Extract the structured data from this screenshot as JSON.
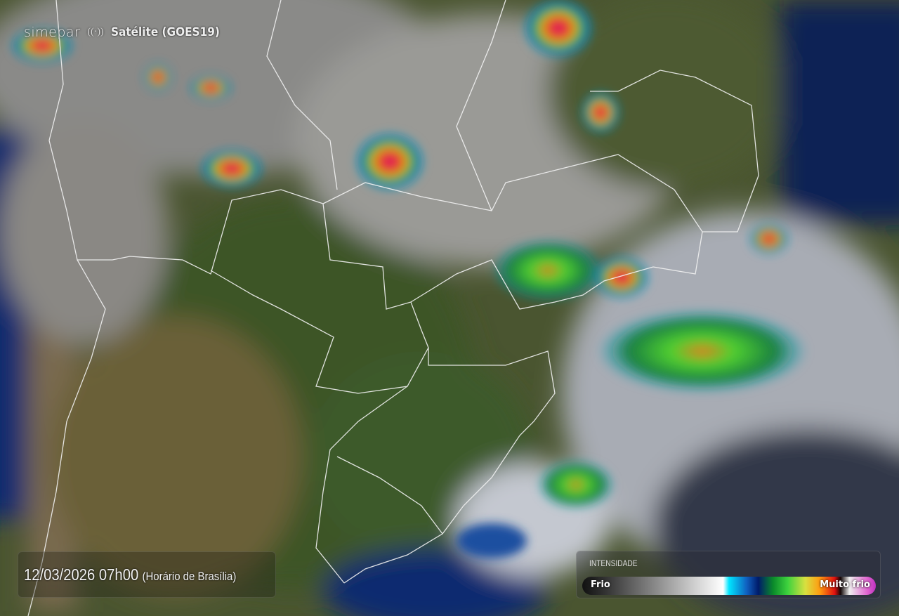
{
  "header": {
    "logo": "simepar",
    "title": "Satélite (GOES19)",
    "logo_icon": "signal-waves-icon"
  },
  "timestamp": {
    "datetime": "12/03/2026 07h00",
    "timezone": "(Horário de Brasília)"
  },
  "legend": {
    "title": "INTENSIDADE",
    "min_label": "Frio",
    "max_label": "Muito frio",
    "colors": [
      "#111111",
      "#8a8a8a",
      "#ffffff",
      "#00e5ff",
      "#1060c0",
      "#001b6a",
      "#3ed23e",
      "#d8e040",
      "#ff9a10",
      "#e01010",
      "#e066d0"
    ]
  }
}
